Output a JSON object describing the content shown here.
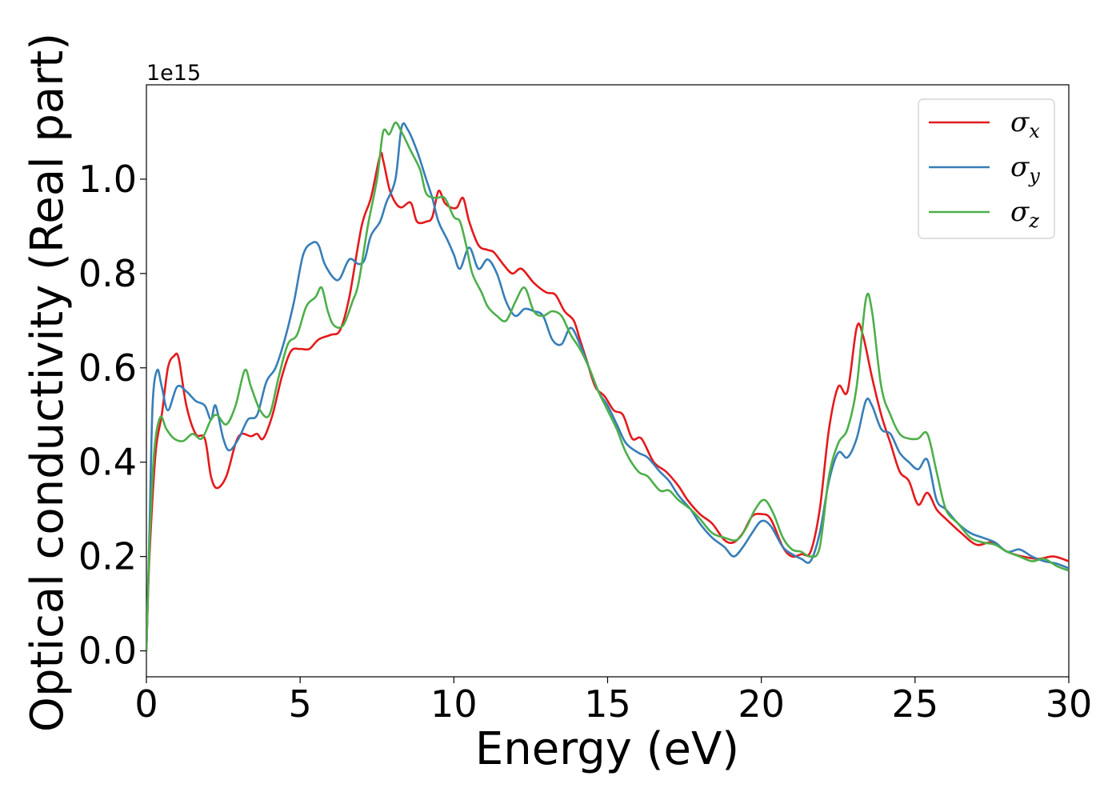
{
  "chart_data": {
    "type": "line",
    "title": "",
    "xlabel": "Energy (eV)",
    "ylabel": "Optical conductivity (Real part)",
    "y_offset_text": "1e15",
    "xlim": [
      0,
      30
    ],
    "ylim": [
      -0.055,
      1.2
    ],
    "x_ticks": [
      0,
      5,
      10,
      15,
      20,
      25,
      30
    ],
    "x_tick_labels": [
      "0",
      "5",
      "10",
      "15",
      "20",
      "25",
      "30"
    ],
    "y_ticks": [
      0.0,
      0.2,
      0.4,
      0.6,
      0.8,
      1.0
    ],
    "y_tick_labels": [
      "0.0",
      "0.2",
      "0.4",
      "0.6",
      "0.8",
      "1.0"
    ],
    "grid": false,
    "legend_position": "top-right",
    "series": [
      {
        "name": "σx",
        "symbol": "σ",
        "subscript": "x",
        "color": "#e41a1c",
        "points": [
          [
            0,
            0
          ],
          [
            0.1,
            0.2
          ],
          [
            0.3,
            0.42
          ],
          [
            0.5,
            0.5
          ],
          [
            0.7,
            0.6
          ],
          [
            0.9,
            0.625
          ],
          [
            1.05,
            0.62
          ],
          [
            1.3,
            0.52
          ],
          [
            1.6,
            0.46
          ],
          [
            1.9,
            0.45
          ],
          [
            2.1,
            0.37
          ],
          [
            2.3,
            0.345
          ],
          [
            2.6,
            0.37
          ],
          [
            2.9,
            0.44
          ],
          [
            3.1,
            0.46
          ],
          [
            3.4,
            0.455
          ],
          [
            3.6,
            0.46
          ],
          [
            3.8,
            0.45
          ],
          [
            4.1,
            0.5
          ],
          [
            4.4,
            0.58
          ],
          [
            4.7,
            0.635
          ],
          [
            5.0,
            0.64
          ],
          [
            5.3,
            0.64
          ],
          [
            5.6,
            0.66
          ],
          [
            6.0,
            0.67
          ],
          [
            6.3,
            0.68
          ],
          [
            6.6,
            0.75
          ],
          [
            7.0,
            0.9
          ],
          [
            7.3,
            0.96
          ],
          [
            7.6,
            1.05
          ],
          [
            7.7,
            1.04
          ],
          [
            7.9,
            0.98
          ],
          [
            8.1,
            0.95
          ],
          [
            8.3,
            0.94
          ],
          [
            8.6,
            0.95
          ],
          [
            8.8,
            0.91
          ],
          [
            9.1,
            0.91
          ],
          [
            9.3,
            0.92
          ],
          [
            9.5,
            0.975
          ],
          [
            9.7,
            0.95
          ],
          [
            9.9,
            0.94
          ],
          [
            10.1,
            0.94
          ],
          [
            10.3,
            0.96
          ],
          [
            10.5,
            0.91
          ],
          [
            10.8,
            0.86
          ],
          [
            11.1,
            0.85
          ],
          [
            11.3,
            0.845
          ],
          [
            11.6,
            0.82
          ],
          [
            11.9,
            0.8
          ],
          [
            12.2,
            0.81
          ],
          [
            12.6,
            0.78
          ],
          [
            13.0,
            0.76
          ],
          [
            13.3,
            0.755
          ],
          [
            13.6,
            0.72
          ],
          [
            13.9,
            0.7
          ],
          [
            14.1,
            0.66
          ],
          [
            14.3,
            0.62
          ],
          [
            14.6,
            0.56
          ],
          [
            14.9,
            0.54
          ],
          [
            15.2,
            0.51
          ],
          [
            15.5,
            0.5
          ],
          [
            15.8,
            0.45
          ],
          [
            16.1,
            0.45
          ],
          [
            16.5,
            0.4
          ],
          [
            16.9,
            0.38
          ],
          [
            17.3,
            0.35
          ],
          [
            17.6,
            0.32
          ],
          [
            18.0,
            0.29
          ],
          [
            18.4,
            0.27
          ],
          [
            18.8,
            0.235
          ],
          [
            19.1,
            0.23
          ],
          [
            19.4,
            0.25
          ],
          [
            19.7,
            0.285
          ],
          [
            20.0,
            0.29
          ],
          [
            20.3,
            0.28
          ],
          [
            20.7,
            0.22
          ],
          [
            21.0,
            0.2
          ],
          [
            21.3,
            0.205
          ],
          [
            21.6,
            0.21
          ],
          [
            21.9,
            0.3
          ],
          [
            22.2,
            0.47
          ],
          [
            22.5,
            0.56
          ],
          [
            22.8,
            0.55
          ],
          [
            23.1,
            0.685
          ],
          [
            23.3,
            0.67
          ],
          [
            23.6,
            0.58
          ],
          [
            23.9,
            0.5
          ],
          [
            24.2,
            0.44
          ],
          [
            24.5,
            0.38
          ],
          [
            24.8,
            0.36
          ],
          [
            25.1,
            0.31
          ],
          [
            25.4,
            0.335
          ],
          [
            25.7,
            0.3
          ],
          [
            26.0,
            0.28
          ],
          [
            26.5,
            0.25
          ],
          [
            27.0,
            0.225
          ],
          [
            27.5,
            0.23
          ],
          [
            28.0,
            0.21
          ],
          [
            28.5,
            0.2
          ],
          [
            29.0,
            0.195
          ],
          [
            29.5,
            0.2
          ],
          [
            30,
            0.19
          ]
        ]
      },
      {
        "name": "σy",
        "symbol": "σ",
        "subscript": "y",
        "color": "#377eb8",
        "points": [
          [
            0,
            0
          ],
          [
            0.1,
            0.25
          ],
          [
            0.2,
            0.52
          ],
          [
            0.35,
            0.595
          ],
          [
            0.5,
            0.56
          ],
          [
            0.7,
            0.51
          ],
          [
            1.0,
            0.56
          ],
          [
            1.3,
            0.55
          ],
          [
            1.6,
            0.53
          ],
          [
            1.9,
            0.52
          ],
          [
            2.1,
            0.49
          ],
          [
            2.25,
            0.52
          ],
          [
            2.5,
            0.45
          ],
          [
            2.7,
            0.425
          ],
          [
            3.0,
            0.45
          ],
          [
            3.3,
            0.49
          ],
          [
            3.6,
            0.5
          ],
          [
            3.9,
            0.57
          ],
          [
            4.2,
            0.6
          ],
          [
            4.5,
            0.66
          ],
          [
            4.8,
            0.74
          ],
          [
            5.1,
            0.84
          ],
          [
            5.4,
            0.865
          ],
          [
            5.6,
            0.86
          ],
          [
            5.8,
            0.82
          ],
          [
            6.1,
            0.79
          ],
          [
            6.3,
            0.79
          ],
          [
            6.6,
            0.83
          ],
          [
            6.9,
            0.82
          ],
          [
            7.1,
            0.83
          ],
          [
            7.3,
            0.88
          ],
          [
            7.6,
            0.91
          ],
          [
            7.8,
            0.95
          ],
          [
            8.1,
            1.0
          ],
          [
            8.3,
            1.11
          ],
          [
            8.5,
            1.105
          ],
          [
            8.8,
            1.06
          ],
          [
            9.1,
            1.0
          ],
          [
            9.3,
            0.96
          ],
          [
            9.5,
            0.91
          ],
          [
            9.8,
            0.87
          ],
          [
            10.0,
            0.84
          ],
          [
            10.2,
            0.81
          ],
          [
            10.5,
            0.855
          ],
          [
            10.8,
            0.81
          ],
          [
            11.1,
            0.83
          ],
          [
            11.4,
            0.8
          ],
          [
            11.7,
            0.74
          ],
          [
            12.0,
            0.71
          ],
          [
            12.3,
            0.725
          ],
          [
            12.6,
            0.72
          ],
          [
            12.9,
            0.71
          ],
          [
            13.2,
            0.66
          ],
          [
            13.5,
            0.65
          ],
          [
            13.8,
            0.685
          ],
          [
            14.1,
            0.65
          ],
          [
            14.4,
            0.6
          ],
          [
            14.7,
            0.55
          ],
          [
            15.0,
            0.52
          ],
          [
            15.3,
            0.48
          ],
          [
            15.6,
            0.44
          ],
          [
            16.0,
            0.42
          ],
          [
            16.3,
            0.41
          ],
          [
            16.7,
            0.38
          ],
          [
            17.0,
            0.36
          ],
          [
            17.3,
            0.33
          ],
          [
            17.7,
            0.3
          ],
          [
            18.0,
            0.27
          ],
          [
            18.4,
            0.24
          ],
          [
            18.8,
            0.22
          ],
          [
            19.1,
            0.2
          ],
          [
            19.4,
            0.22
          ],
          [
            19.7,
            0.25
          ],
          [
            20.0,
            0.275
          ],
          [
            20.3,
            0.265
          ],
          [
            20.7,
            0.22
          ],
          [
            21.0,
            0.205
          ],
          [
            21.3,
            0.195
          ],
          [
            21.6,
            0.19
          ],
          [
            21.9,
            0.25
          ],
          [
            22.2,
            0.36
          ],
          [
            22.5,
            0.42
          ],
          [
            22.8,
            0.41
          ],
          [
            23.1,
            0.45
          ],
          [
            23.4,
            0.53
          ],
          [
            23.6,
            0.52
          ],
          [
            23.9,
            0.47
          ],
          [
            24.2,
            0.46
          ],
          [
            24.5,
            0.42
          ],
          [
            24.8,
            0.4
          ],
          [
            25.1,
            0.385
          ],
          [
            25.4,
            0.405
          ],
          [
            25.7,
            0.32
          ],
          [
            26.0,
            0.3
          ],
          [
            26.4,
            0.27
          ],
          [
            26.8,
            0.25
          ],
          [
            27.2,
            0.24
          ],
          [
            27.6,
            0.23
          ],
          [
            28.0,
            0.21
          ],
          [
            28.4,
            0.215
          ],
          [
            28.8,
            0.2
          ],
          [
            29.2,
            0.19
          ],
          [
            29.6,
            0.185
          ],
          [
            30,
            0.175
          ]
        ]
      },
      {
        "name": "σz",
        "symbol": "σ",
        "subscript": "z",
        "color": "#4daf4a",
        "points": [
          [
            0,
            0
          ],
          [
            0.1,
            0.22
          ],
          [
            0.25,
            0.42
          ],
          [
            0.45,
            0.495
          ],
          [
            0.65,
            0.47
          ],
          [
            0.9,
            0.45
          ],
          [
            1.2,
            0.445
          ],
          [
            1.5,
            0.46
          ],
          [
            1.8,
            0.45
          ],
          [
            2.1,
            0.49
          ],
          [
            2.3,
            0.5
          ],
          [
            2.6,
            0.48
          ],
          [
            2.9,
            0.52
          ],
          [
            3.2,
            0.595
          ],
          [
            3.4,
            0.56
          ],
          [
            3.7,
            0.51
          ],
          [
            4.0,
            0.5
          ],
          [
            4.3,
            0.58
          ],
          [
            4.6,
            0.65
          ],
          [
            4.9,
            0.67
          ],
          [
            5.2,
            0.73
          ],
          [
            5.5,
            0.75
          ],
          [
            5.7,
            0.77
          ],
          [
            5.9,
            0.72
          ],
          [
            6.1,
            0.69
          ],
          [
            6.4,
            0.69
          ],
          [
            6.7,
            0.74
          ],
          [
            6.9,
            0.78
          ],
          [
            7.2,
            0.9
          ],
          [
            7.5,
            1.0
          ],
          [
            7.7,
            1.1
          ],
          [
            7.9,
            1.095
          ],
          [
            8.1,
            1.12
          ],
          [
            8.3,
            1.1
          ],
          [
            8.6,
            1.06
          ],
          [
            8.9,
            1.02
          ],
          [
            9.1,
            0.97
          ],
          [
            9.4,
            0.96
          ],
          [
            9.7,
            0.96
          ],
          [
            10.0,
            0.92
          ],
          [
            10.2,
            0.91
          ],
          [
            10.4,
            0.86
          ],
          [
            10.6,
            0.8
          ],
          [
            10.9,
            0.76
          ],
          [
            11.1,
            0.73
          ],
          [
            11.4,
            0.71
          ],
          [
            11.7,
            0.7
          ],
          [
            12.0,
            0.74
          ],
          [
            12.3,
            0.77
          ],
          [
            12.6,
            0.72
          ],
          [
            12.9,
            0.71
          ],
          [
            13.2,
            0.72
          ],
          [
            13.5,
            0.71
          ],
          [
            13.8,
            0.67
          ],
          [
            14.1,
            0.64
          ],
          [
            14.4,
            0.6
          ],
          [
            14.7,
            0.55
          ],
          [
            15.0,
            0.51
          ],
          [
            15.3,
            0.47
          ],
          [
            15.6,
            0.42
          ],
          [
            16.0,
            0.38
          ],
          [
            16.3,
            0.37
          ],
          [
            16.7,
            0.34
          ],
          [
            17.0,
            0.34
          ],
          [
            17.3,
            0.32
          ],
          [
            17.7,
            0.3
          ],
          [
            18.0,
            0.28
          ],
          [
            18.4,
            0.25
          ],
          [
            18.8,
            0.24
          ],
          [
            19.2,
            0.235
          ],
          [
            19.5,
            0.26
          ],
          [
            19.8,
            0.3
          ],
          [
            20.1,
            0.32
          ],
          [
            20.4,
            0.29
          ],
          [
            20.7,
            0.24
          ],
          [
            21.0,
            0.215
          ],
          [
            21.3,
            0.21
          ],
          [
            21.6,
            0.2
          ],
          [
            21.9,
            0.22
          ],
          [
            22.2,
            0.37
          ],
          [
            22.5,
            0.44
          ],
          [
            22.8,
            0.47
          ],
          [
            23.1,
            0.56
          ],
          [
            23.4,
            0.745
          ],
          [
            23.6,
            0.72
          ],
          [
            23.9,
            0.56
          ],
          [
            24.2,
            0.5
          ],
          [
            24.5,
            0.46
          ],
          [
            24.8,
            0.45
          ],
          [
            25.1,
            0.45
          ],
          [
            25.4,
            0.46
          ],
          [
            25.7,
            0.38
          ],
          [
            26.0,
            0.3
          ],
          [
            26.4,
            0.27
          ],
          [
            26.8,
            0.24
          ],
          [
            27.2,
            0.23
          ],
          [
            27.6,
            0.225
          ],
          [
            28.0,
            0.21
          ],
          [
            28.4,
            0.2
          ],
          [
            28.8,
            0.19
          ],
          [
            29.2,
            0.195
          ],
          [
            29.6,
            0.18
          ],
          [
            30,
            0.17
          ]
        ]
      }
    ]
  }
}
